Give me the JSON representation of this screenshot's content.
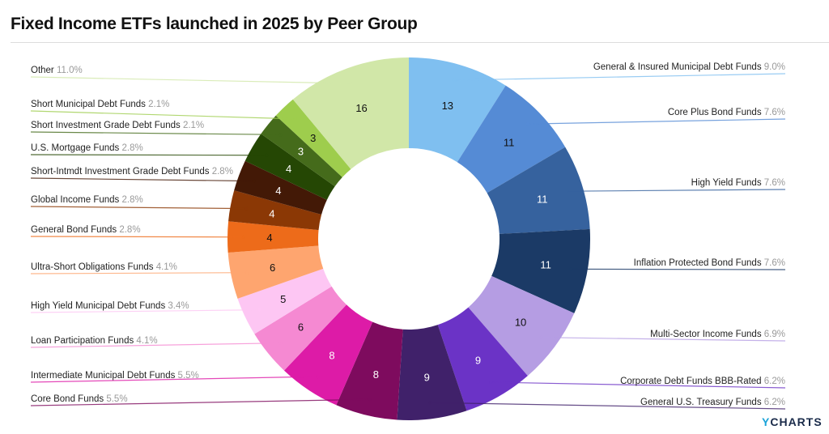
{
  "title": "Fixed Income ETFs launched in 2025 by Peer Group",
  "logo": {
    "y": "Y",
    "rest": "CHARTS"
  },
  "chart_data": {
    "type": "pie",
    "donut": true,
    "title": "Fixed Income ETFs launched in 2025 by Peer Group",
    "slices": [
      {
        "label": "General & Insured Municipal Debt Funds",
        "value": 13,
        "pct": "9.0%",
        "color": "#7fbff0"
      },
      {
        "label": "Core Plus Bond Funds",
        "value": 11,
        "pct": "7.6%",
        "color": "#558bd5"
      },
      {
        "label": "High Yield Funds",
        "value": 11,
        "pct": "7.6%",
        "color": "#36629e"
      },
      {
        "label": "Inflation Protected Bond Funds",
        "value": 11,
        "pct": "7.6%",
        "color": "#1b3a66"
      },
      {
        "label": "Multi-Sector Income Funds",
        "value": 10,
        "pct": "6.9%",
        "color": "#b59de3"
      },
      {
        "label": "Corporate Debt Funds BBB-Rated",
        "value": 9,
        "pct": "6.2%",
        "color": "#6b33c6"
      },
      {
        "label": "General U.S. Treasury Funds",
        "value": 9,
        "pct": "6.2%",
        "color": "#40216a"
      },
      {
        "label": "Core Bond Funds",
        "value": 8,
        "pct": "5.5%",
        "color": "#7e0b5e"
      },
      {
        "label": "Intermediate Municipal Debt Funds",
        "value": 8,
        "pct": "5.5%",
        "color": "#dd1ba7"
      },
      {
        "label": "Loan Participation Funds",
        "value": 6,
        "pct": "4.1%",
        "color": "#f589d2"
      },
      {
        "label": "High Yield Municipal Debt Funds",
        "value": 5,
        "pct": "3.4%",
        "color": "#fdc6f3"
      },
      {
        "label": "Ultra-Short Obligations Funds",
        "value": 6,
        "pct": "4.1%",
        "color": "#fea56f"
      },
      {
        "label": "General Bond Funds",
        "value": 4,
        "pct": "2.8%",
        "color": "#ed6b1a"
      },
      {
        "label": "Global Income Funds",
        "value": 4,
        "pct": "2.8%",
        "color": "#8b3805"
      },
      {
        "label": "Short-Intmdt Investment Grade Debt Funds",
        "value": 4,
        "pct": "2.8%",
        "color": "#431906"
      },
      {
        "label": "U.S. Mortgage Funds",
        "value": 4,
        "pct": "2.8%",
        "color": "#254704"
      },
      {
        "label": "Short Investment Grade Debt Funds",
        "value": 3,
        "pct": "2.1%",
        "color": "#456b1b"
      },
      {
        "label": "Short Municipal Debt Funds",
        "value": 3,
        "pct": "2.1%",
        "color": "#9ecd4d"
      },
      {
        "label": "Other",
        "value": 16,
        "pct": "11.0%",
        "color": "#d1e7a8"
      }
    ]
  }
}
